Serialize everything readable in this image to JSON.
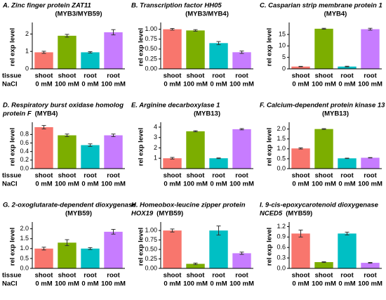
{
  "chart_data": [
    {
      "type": "bar",
      "title": [
        "A. Zinc finger protein ZAT11"
      ],
      "subtitle": "(MYB3/MYB59)",
      "ylabel": "rel exp level",
      "row_labels": [
        "tissue",
        "NaCl"
      ],
      "categories": [
        [
          "shoot",
          "0 mM"
        ],
        [
          "shoot",
          "100 mM"
        ],
        [
          "root",
          "0 mM"
        ],
        [
          "root",
          "100 mM"
        ]
      ],
      "values": [
        0.95,
        1.9,
        0.95,
        2.1
      ],
      "errors": [
        0.06,
        0.08,
        0.04,
        0.15
      ],
      "colors": [
        "#f8766d",
        "#7cae00",
        "#00bfc4",
        "#c77cff"
      ],
      "ylim": [
        0,
        2.5
      ],
      "yticks": [
        0,
        1,
        2
      ]
    },
    {
      "type": "bar",
      "title": [
        "B. Transcription factor HH05"
      ],
      "subtitle": "(MYB3/MYB4)",
      "ylabel": "rel exp level",
      "categories": [
        [
          "shoot",
          "0 mM"
        ],
        [
          "shoot",
          "100 mM"
        ],
        [
          "root",
          "0 mM"
        ],
        [
          "root",
          "100 mM"
        ]
      ],
      "values": [
        1.0,
        0.97,
        0.65,
        0.42
      ],
      "errors": [
        0.02,
        0.02,
        0.04,
        0.03
      ],
      "colors": [
        "#f8766d",
        "#7cae00",
        "#00bfc4",
        "#c77cff"
      ],
      "ylim": [
        0,
        1.1
      ],
      "yticks": [
        {
          "value": 0,
          "label": "0.00"
        },
        {
          "value": 0.25,
          "label": "0.25"
        },
        {
          "value": 0.5,
          "label": "0.50"
        },
        {
          "value": 0.75,
          "label": "0.75"
        },
        {
          "value": 1,
          "label": "1.00"
        }
      ]
    },
    {
      "type": "bar",
      "title": [
        "C. Casparian strip membrane protein 1"
      ],
      "subtitle": "(MYB4)",
      "ylabel": "rel exp level",
      "categories": [
        [
          "shoot",
          "0 mM"
        ],
        [
          "shoot",
          "100 mM"
        ],
        [
          "root",
          "0 mM"
        ],
        [
          "root",
          "100 mM"
        ]
      ],
      "values": [
        1.0,
        17.5,
        1.0,
        17.3
      ],
      "errors": [
        0.1,
        0.2,
        0.15,
        0.4
      ],
      "colors": [
        "#f8766d",
        "#7cae00",
        "#00bfc4",
        "#c77cff"
      ],
      "ylim": [
        0,
        19
      ],
      "yticks": [
        0,
        5,
        10,
        15
      ]
    },
    {
      "type": "bar",
      "title": [
        "D. Respiratory burst oxidase homolog",
        "protein F"
      ],
      "subtitle": "(MYB4)",
      "ylabel": "rel exp level",
      "row_labels": [
        "tissue",
        "NaCl"
      ],
      "categories": [
        [
          "shoot",
          "0 mM"
        ],
        [
          "shoot",
          "100 mM"
        ],
        [
          "root",
          "0 mM"
        ],
        [
          "root",
          "100 mM"
        ]
      ],
      "values": [
        0.97,
        0.78,
        0.55,
        0.78
      ],
      "errors": [
        0.04,
        0.03,
        0.03,
        0.03
      ],
      "colors": [
        "#f8766d",
        "#7cae00",
        "#00bfc4",
        "#c77cff"
      ],
      "ylim": [
        0,
        1.02
      ],
      "yticks": [
        {
          "value": 0,
          "label": "0.0"
        },
        {
          "value": 0.2,
          "label": "0.2"
        },
        {
          "value": 0.4,
          "label": "0.4"
        },
        {
          "value": 0.6,
          "label": "0.6"
        },
        {
          "value": 0.8,
          "label": "0.8"
        }
      ]
    },
    {
      "type": "bar",
      "title": [
        "E. Arginine decarboxylase 1"
      ],
      "subtitle": "(MYB13)",
      "ylabel": "rel exp level",
      "categories": [
        [
          "shoot",
          "0 mM"
        ],
        [
          "shoot",
          "100 mM"
        ],
        [
          "root",
          "0 mM"
        ],
        [
          "root",
          "100 mM"
        ]
      ],
      "values": [
        1.0,
        3.6,
        1.0,
        3.8
      ],
      "errors": [
        0.08,
        0.05,
        0.03,
        0.06
      ],
      "colors": [
        "#f8766d",
        "#7cae00",
        "#00bfc4",
        "#c77cff"
      ],
      "ylim": [
        0,
        4.2
      ],
      "yticks": [
        1,
        2,
        3,
        4
      ]
    },
    {
      "type": "bar",
      "title": [
        "F. Calcium-dependent protein kinase 13"
      ],
      "subtitle": "(MYB13)",
      "ylabel": "rel exp level",
      "categories": [
        [
          "shoot",
          "0 mM"
        ],
        [
          "shoot",
          "100 mM"
        ],
        [
          "root",
          "0 mM"
        ],
        [
          "root",
          "100 mM"
        ]
      ],
      "values": [
        1.02,
        2.0,
        0.52,
        0.55
      ],
      "errors": [
        0.03,
        0.02,
        0.01,
        0.01
      ],
      "colors": [
        "#f8766d",
        "#7cae00",
        "#00bfc4",
        "#c77cff"
      ],
      "ylim": [
        0,
        2.2
      ],
      "yticks": [
        {
          "value": 0,
          "label": "0.0"
        },
        {
          "value": 0.5,
          "label": "0.5"
        },
        {
          "value": 1,
          "label": "1.0"
        },
        {
          "value": 1.5,
          "label": "1.5"
        },
        {
          "value": 2,
          "label": "2.0"
        }
      ]
    },
    {
      "type": "bar",
      "title": [
        "G. 2-oxoglutarate-dependent dioxygenase"
      ],
      "subtitle": "(MYB59)",
      "ylabel": "rel exp level",
      "row_labels": [
        "tissue",
        "NaCl"
      ],
      "categories": [
        [
          "shoot",
          "0 mM"
        ],
        [
          "shoot",
          "100 mM"
        ],
        [
          "root",
          "0 mM"
        ],
        [
          "root",
          "100 mM"
        ]
      ],
      "values": [
        1.0,
        1.3,
        1.0,
        1.85
      ],
      "errors": [
        0.07,
        0.15,
        0.05,
        0.12
      ],
      "colors": [
        "#f8766d",
        "#7cae00",
        "#00bfc4",
        "#c77cff"
      ],
      "ylim": [
        0,
        2.2
      ],
      "yticks": [
        {
          "value": 0,
          "label": "0.0"
        },
        {
          "value": 0.5,
          "label": "0.5"
        },
        {
          "value": 1,
          "label": "1.0"
        },
        {
          "value": 1.5,
          "label": "1.5"
        },
        {
          "value": 2,
          "label": "2.0"
        }
      ]
    },
    {
      "type": "bar",
      "title": [
        "H. Homeobox-leucine zipper protein",
        "HOX19"
      ],
      "subtitle": "(MYB59)",
      "ylabel": "rel exp level",
      "categories": [
        [
          "shoot",
          "0 mM"
        ],
        [
          "shoot",
          "100 mM"
        ],
        [
          "root",
          "0 mM"
        ],
        [
          "root",
          "100 mM"
        ]
      ],
      "values": [
        1.0,
        0.12,
        1.0,
        0.4
      ],
      "errors": [
        0.04,
        0.02,
        0.12,
        0.03
      ],
      "colors": [
        "#f8766d",
        "#7cae00",
        "#00bfc4",
        "#c77cff"
      ],
      "ylim": [
        0,
        1.15
      ],
      "yticks": [
        {
          "value": 0,
          "label": "0.00"
        },
        {
          "value": 0.25,
          "label": "0.25"
        },
        {
          "value": 0.5,
          "label": "0.50"
        },
        {
          "value": 0.75,
          "label": "0.75"
        },
        {
          "value": 1,
          "label": "1.00"
        }
      ]
    },
    {
      "type": "bar",
      "title": [
        "I. 9-cis-epoxycarotenoid dioxygenase",
        "NCED5"
      ],
      "subtitle": "(MYB59)",
      "ylabel": "rel exp level",
      "categories": [
        [
          "shoot",
          "0 mM"
        ],
        [
          "shoot",
          "100 mM"
        ],
        [
          "root",
          "0 mM"
        ],
        [
          "root",
          "100 mM"
        ]
      ],
      "values": [
        1.0,
        0.18,
        1.0,
        0.16
      ],
      "errors": [
        0.1,
        0.01,
        0.04,
        0.01
      ],
      "colors": [
        "#f8766d",
        "#7cae00",
        "#00bfc4",
        "#c77cff"
      ],
      "ylim": [
        0,
        1.25
      ],
      "yticks": [
        {
          "value": 0,
          "label": "0.0"
        },
        {
          "value": 0.3,
          "label": "0.3"
        },
        {
          "value": 0.6,
          "label": "0.6"
        },
        {
          "value": 0.9,
          "label": "0.9"
        },
        {
          "value": 1.2,
          "label": "1.2"
        }
      ]
    }
  ]
}
